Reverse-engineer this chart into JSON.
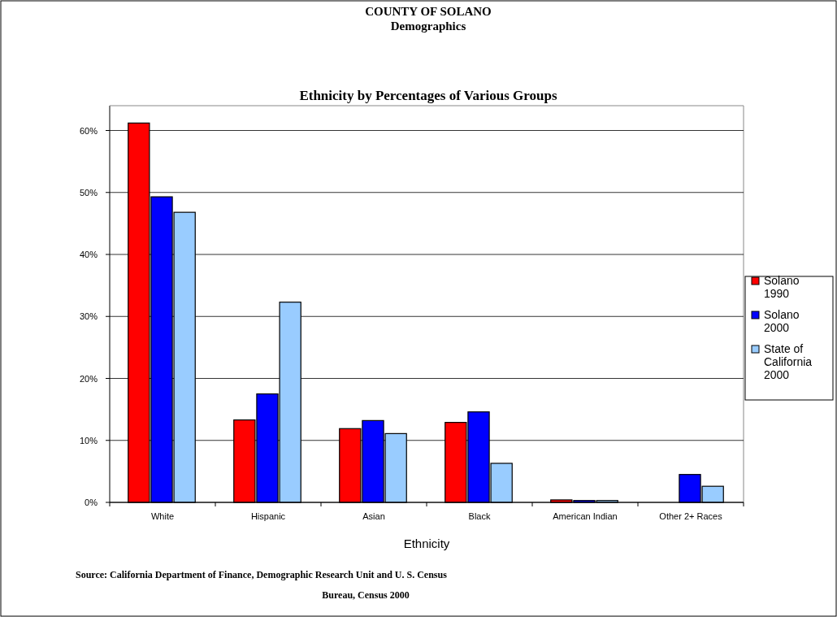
{
  "chart_data": {
    "type": "bar",
    "title": "COUNTY OF SOLANO\nDemographics",
    "subtitle": "Ethnicity by Percentages of Various Groups",
    "xlabel": "Ethnicity",
    "categories": [
      "White",
      "Hispanic",
      "Asian",
      "Black",
      "American Indian",
      "Other 2+ Races"
    ],
    "series": [
      {
        "name": "Solano 1990",
        "color": "#ff0000",
        "values": [
          61.2,
          13.3,
          11.9,
          12.9,
          0.4,
          null
        ]
      },
      {
        "name": "Solano 2000",
        "color": "#0000ff",
        "values": [
          49.3,
          17.5,
          13.2,
          14.6,
          0.3,
          4.5
        ]
      },
      {
        "name": "State of California 2000",
        "color": "#99ccff",
        "values": [
          46.8,
          32.3,
          11.1,
          6.3,
          0.3,
          2.6
        ]
      }
    ],
    "ylim": [
      0,
      64
    ],
    "yticks": [
      {
        "value": 0,
        "label": "0%"
      },
      {
        "value": 10,
        "label": "10%"
      },
      {
        "value": 20,
        "label": "20%"
      },
      {
        "value": 30,
        "label": "30%"
      },
      {
        "value": 40,
        "label": "40%"
      },
      {
        "value": 50,
        "label": "50%"
      },
      {
        "value": 60,
        "label": "60%"
      }
    ],
    "grid": "y",
    "legend": "right",
    "annotations": [
      "Source:  California Department of Finance, Demographic Research Unit and U. S. Census Bureau, Census 2000"
    ]
  }
}
